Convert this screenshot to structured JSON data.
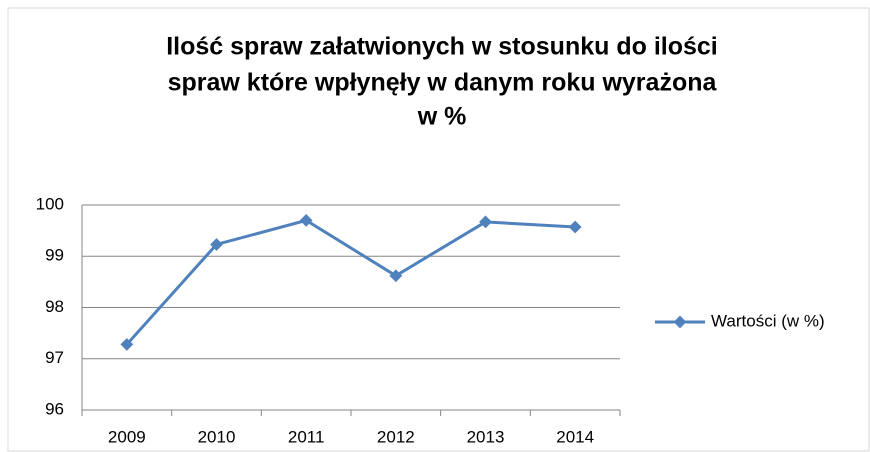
{
  "chart_data": {
    "type": "line",
    "title": [
      "Ilość spraw załatwionych  w stosunku do ilości",
      "spraw które wpłynęły w danym roku wyrażona",
      "w %"
    ],
    "categories": [
      "2009",
      "2010",
      "2011",
      "2012",
      "2013",
      "2014"
    ],
    "series": [
      {
        "name": "Wartości (w %)",
        "color": "#4f81bd",
        "values": [
          97.28,
          99.23,
          99.7,
          98.62,
          99.67,
          99.57
        ]
      }
    ],
    "ylim": [
      96,
      100
    ],
    "yticks": [
      96,
      97,
      98,
      99,
      100
    ],
    "grid": true,
    "legend": "right"
  }
}
